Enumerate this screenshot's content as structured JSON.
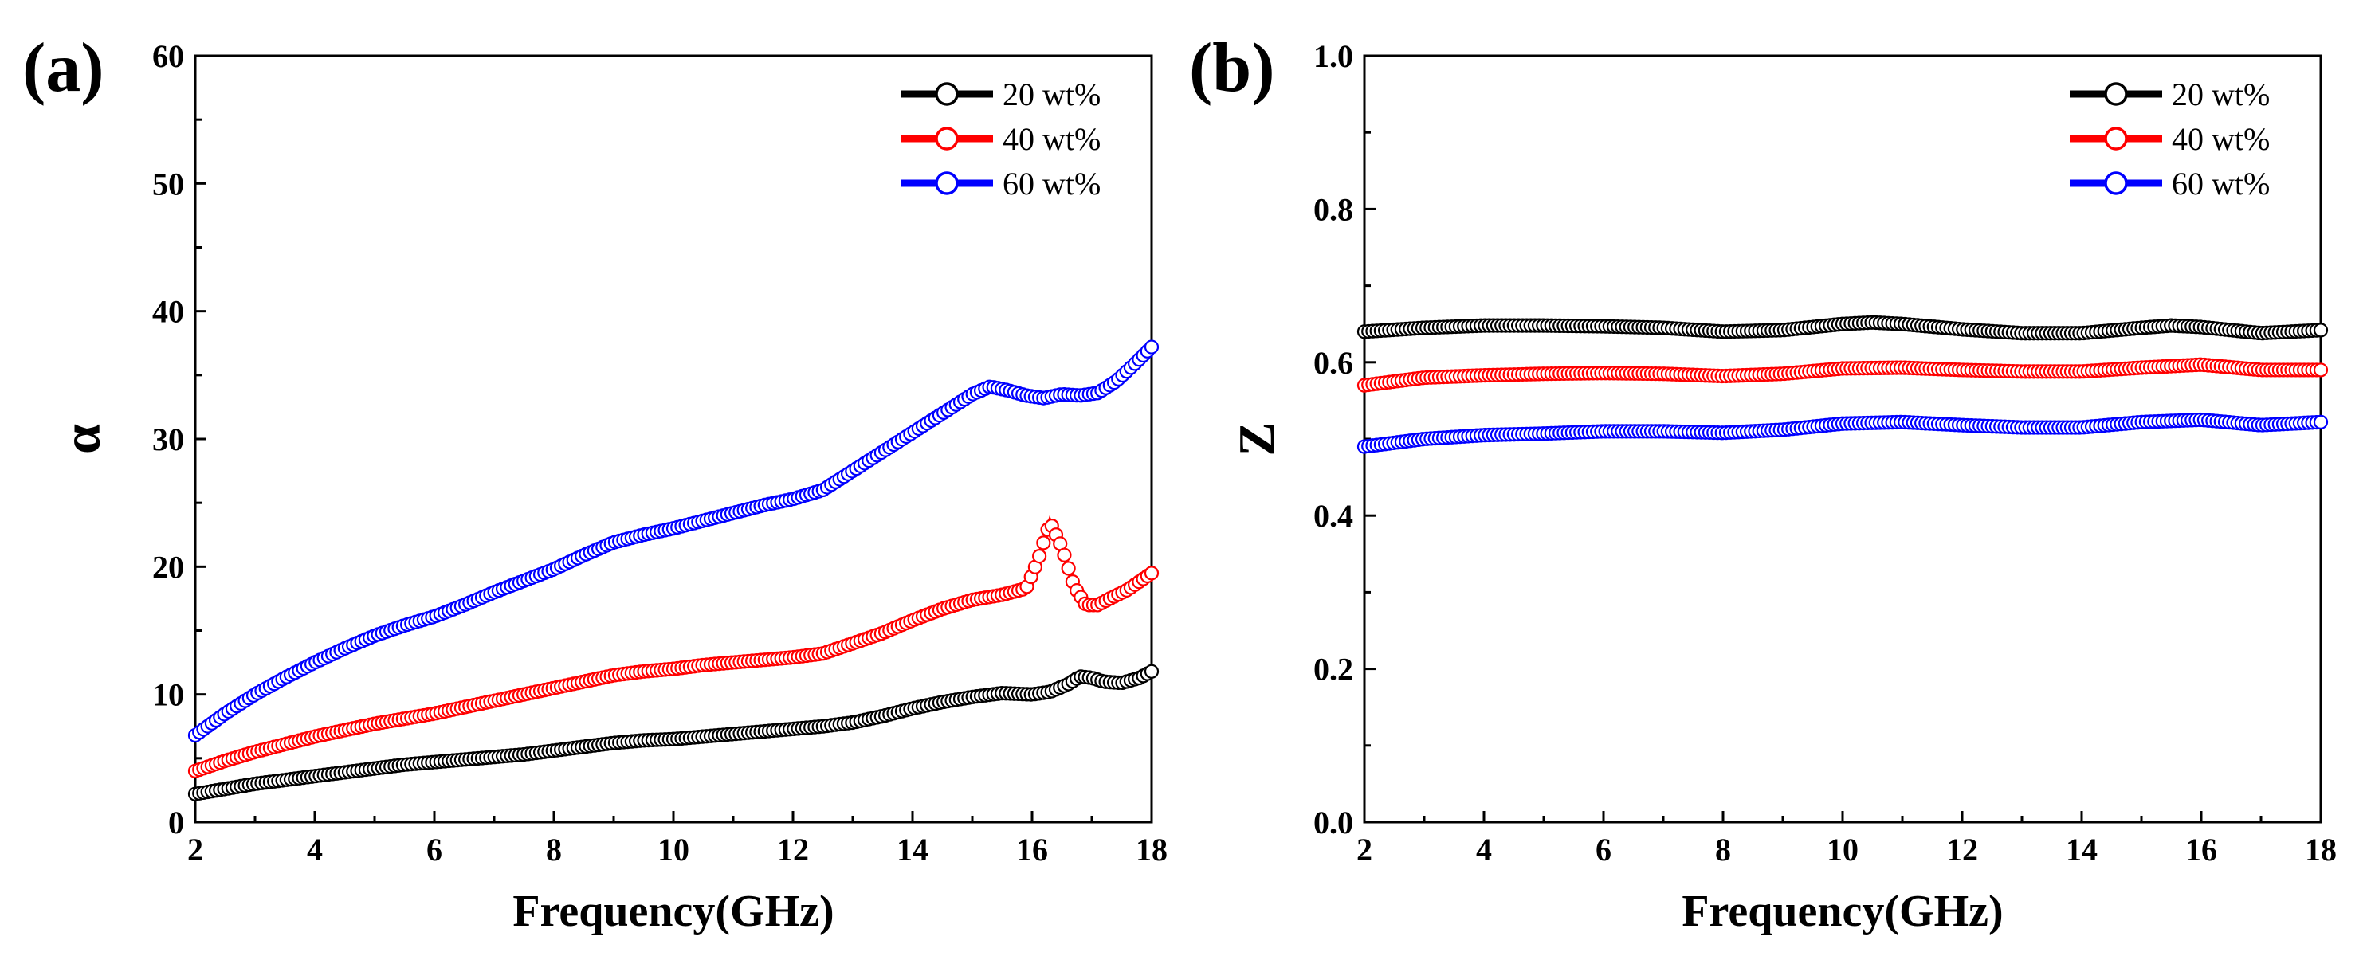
{
  "chart_data": [
    {
      "type": "line",
      "panel_label": "(a)",
      "xlabel": "Frequency(GHz)",
      "ylabel": "α",
      "xlim": [
        2,
        18
      ],
      "ylim": [
        0,
        60
      ],
      "x_ticks": [
        "2",
        "4",
        "6",
        "8",
        "10",
        "12",
        "14",
        "16",
        "18"
      ],
      "y_ticks": [
        "0",
        "10",
        "20",
        "30",
        "40",
        "50",
        "60"
      ],
      "legend_position": "top-right",
      "grid": false,
      "series": [
        {
          "name": "20 wt%",
          "color": "#000000",
          "x": [
            2,
            2.5,
            3,
            3.5,
            4,
            4.5,
            5,
            5.5,
            6,
            6.5,
            7,
            7.5,
            8,
            8.5,
            9,
            9.5,
            10,
            10.5,
            11,
            11.5,
            12,
            12.5,
            13,
            13.5,
            14,
            14.5,
            15,
            15.5,
            16,
            16.3,
            16.6,
            16.8,
            17,
            17.2,
            17.5,
            17.8,
            18
          ],
          "values": [
            2.2,
            2.6,
            3.0,
            3.3,
            3.6,
            3.9,
            4.2,
            4.5,
            4.7,
            4.9,
            5.1,
            5.3,
            5.6,
            5.9,
            6.2,
            6.4,
            6.5,
            6.7,
            6.9,
            7.1,
            7.3,
            7.5,
            7.8,
            8.3,
            8.9,
            9.4,
            9.8,
            10.1,
            10.0,
            10.2,
            10.8,
            11.4,
            11.3,
            11.0,
            10.9,
            11.3,
            11.8
          ]
        },
        {
          "name": "40 wt%",
          "color": "#ff0000",
          "x": [
            2,
            2.5,
            3,
            3.5,
            4,
            4.5,
            5,
            5.5,
            6,
            6.5,
            7,
            7.5,
            8,
            8.5,
            9,
            9.5,
            10,
            10.5,
            11,
            11.5,
            12,
            12.5,
            13,
            13.5,
            14,
            14.5,
            15,
            15.5,
            15.9,
            16.1,
            16.3,
            16.5,
            16.7,
            16.9,
            17.1,
            17.3,
            17.6,
            18
          ],
          "values": [
            4.0,
            4.8,
            5.5,
            6.1,
            6.7,
            7.2,
            7.7,
            8.1,
            8.5,
            9.0,
            9.5,
            10.0,
            10.5,
            11.0,
            11.5,
            11.8,
            12.0,
            12.3,
            12.5,
            12.7,
            12.9,
            13.2,
            14.0,
            14.8,
            15.8,
            16.7,
            17.4,
            17.8,
            18.3,
            20.5,
            23.5,
            21.5,
            18.5,
            17.0,
            17.0,
            17.5,
            18.2,
            19.5
          ]
        },
        {
          "name": "60 wt%",
          "color": "#0000ff",
          "x": [
            2,
            2.5,
            3,
            3.5,
            4,
            4.5,
            5,
            5.5,
            6,
            6.5,
            7,
            7.5,
            8,
            8.5,
            9,
            9.5,
            10,
            10.5,
            11,
            11.5,
            12,
            12.5,
            13,
            13.5,
            14,
            14.5,
            15,
            15.3,
            15.6,
            15.9,
            16.2,
            16.5,
            16.8,
            17.1,
            17.4,
            17.7,
            18
          ],
          "values": [
            6.8,
            8.5,
            10.0,
            11.3,
            12.5,
            13.6,
            14.6,
            15.4,
            16.1,
            17.0,
            18.0,
            18.9,
            19.8,
            20.9,
            21.9,
            22.5,
            23.0,
            23.6,
            24.2,
            24.8,
            25.3,
            26.0,
            27.5,
            29.0,
            30.5,
            32.0,
            33.5,
            34.1,
            33.8,
            33.4,
            33.2,
            33.5,
            33.4,
            33.6,
            34.5,
            35.8,
            37.2
          ]
        }
      ]
    },
    {
      "type": "line",
      "panel_label": "(b)",
      "xlabel": "Frequency(GHz)",
      "ylabel": "Z",
      "xlim": [
        2,
        18
      ],
      "ylim": [
        0,
        1.0
      ],
      "x_ticks": [
        "2",
        "4",
        "6",
        "8",
        "10",
        "12",
        "14",
        "16",
        "18"
      ],
      "y_ticks": [
        "0.0",
        "0.2",
        "0.4",
        "0.6",
        "0.8",
        "1.0"
      ],
      "legend_position": "top-right",
      "grid": false,
      "series": [
        {
          "name": "20 wt%",
          "color": "#000000",
          "x": [
            2,
            3,
            4,
            5,
            6,
            7,
            8,
            9,
            10,
            10.5,
            11,
            12,
            13,
            14,
            15,
            15.5,
            16,
            17,
            18
          ],
          "values": [
            0.64,
            0.645,
            0.648,
            0.648,
            0.647,
            0.645,
            0.64,
            0.642,
            0.65,
            0.652,
            0.65,
            0.643,
            0.638,
            0.638,
            0.645,
            0.648,
            0.646,
            0.638,
            0.642
          ]
        },
        {
          "name": "40 wt%",
          "color": "#ff0000",
          "x": [
            2,
            3,
            4,
            5,
            6,
            7,
            8,
            9,
            10,
            11,
            12,
            13,
            14,
            15,
            16,
            17,
            18
          ],
          "values": [
            0.57,
            0.58,
            0.583,
            0.585,
            0.586,
            0.585,
            0.582,
            0.585,
            0.592,
            0.593,
            0.59,
            0.588,
            0.588,
            0.593,
            0.597,
            0.59,
            0.59
          ]
        },
        {
          "name": "60 wt%",
          "color": "#0000ff",
          "x": [
            2,
            3,
            4,
            5,
            6,
            7,
            8,
            9,
            10,
            11,
            12,
            13,
            14,
            15,
            16,
            17,
            18
          ],
          "values": [
            0.49,
            0.5,
            0.505,
            0.507,
            0.51,
            0.51,
            0.508,
            0.512,
            0.52,
            0.522,
            0.518,
            0.515,
            0.515,
            0.522,
            0.525,
            0.518,
            0.522
          ]
        }
      ]
    }
  ]
}
